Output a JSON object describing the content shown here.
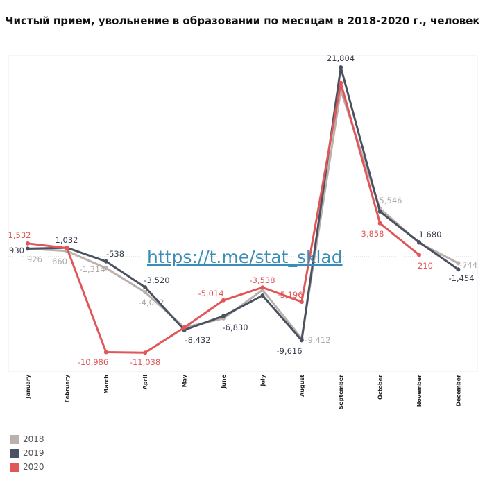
{
  "chart_data": {
    "type": "line",
    "title": "Чистый прием, увольнение в образовании по месяцам в 2018-2020 г., человек",
    "categories": [
      "January",
      "February",
      "March",
      "April",
      "May",
      "June",
      "July",
      "August",
      "September",
      "October",
      "November",
      "December"
    ],
    "series": [
      {
        "name": "2018",
        "color": "#bab0ac",
        "values": [
          926,
          660,
          -1314,
          -4082,
          -8150,
          -7100,
          -3830,
          -9412,
          19170,
          5546,
          1600,
          -744
        ],
        "labels": [
          "926",
          "660",
          "-1,314",
          "-4,082",
          null,
          null,
          null,
          "-9,412",
          null,
          "5,546",
          null,
          "-744"
        ]
      },
      {
        "name": "2019",
        "color": "#4a5262",
        "values": [
          930,
          1032,
          -538,
          -3520,
          -8432,
          -6830,
          -4470,
          -9616,
          21804,
          5200,
          1680,
          -1454
        ],
        "labels": [
          "930",
          "1,032",
          "-538",
          "-3,520",
          "-8,432",
          "-6,830",
          null,
          "-9,616",
          "21,804",
          null,
          "1,680",
          "-1,454"
        ]
      },
      {
        "name": "2020",
        "color": "#e15759",
        "values": [
          1532,
          1000,
          -10986,
          -11038,
          -8150,
          -5014,
          -3538,
          -5196,
          20000,
          3858,
          210,
          null
        ],
        "labels": [
          "1,532",
          null,
          "-10,986",
          "-11,038",
          null,
          "-5,014",
          "-3,538",
          "-5,196",
          null,
          "3,858",
          "210",
          null
        ]
      }
    ],
    "ylim": [
      -13000,
      23000
    ],
    "legend": "bottom-left",
    "grid": false
  },
  "watermark": "https://t.me/stat_sklad"
}
